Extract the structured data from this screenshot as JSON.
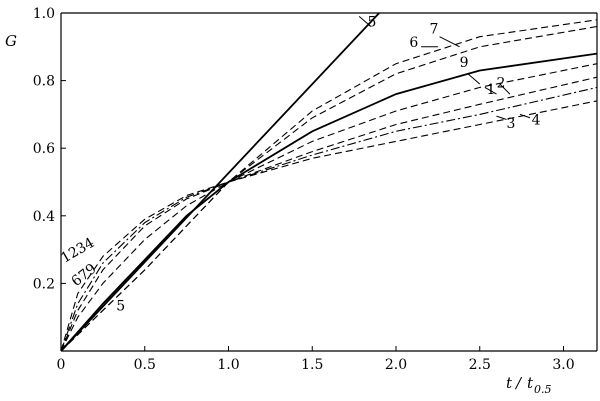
{
  "chart_data": {
    "type": "line",
    "title": "",
    "xlabel_main": "t",
    "xlabel_sep": "/",
    "xlabel_var": "t",
    "xlabel_sub": "0.5",
    "ylabel": "G",
    "xlim": [
      0,
      3.2
    ],
    "ylim": [
      0,
      1.0
    ],
    "x_ticks": [
      0,
      0.5,
      1.0,
      1.5,
      2.0,
      2.5,
      3.0
    ],
    "x_tick_labels": [
      "0",
      "0.5",
      "1.0",
      "1.5",
      "2.0",
      "2.5",
      "3.0"
    ],
    "y_ticks": [
      0.2,
      0.4,
      0.6,
      0.8,
      1.0
    ],
    "y_tick_labels": [
      "0.2",
      "0.4",
      "0.6",
      "0.8",
      "1.0"
    ],
    "grid": false,
    "series": [
      {
        "name": "1",
        "style": "dashed",
        "x": [
          0,
          0.1,
          0.25,
          0.5,
          0.75,
          1.0,
          1.5,
          2.0,
          2.5,
          3.2
        ],
        "y": [
          0,
          0.1,
          0.2,
          0.33,
          0.43,
          0.5,
          0.62,
          0.71,
          0.78,
          0.85
        ]
      },
      {
        "name": "2",
        "style": "dashed",
        "x": [
          0,
          0.1,
          0.25,
          0.5,
          0.75,
          1.0,
          1.5,
          2.0,
          2.5,
          3.2
        ],
        "y": [
          0,
          0.12,
          0.24,
          0.37,
          0.45,
          0.5,
          0.59,
          0.67,
          0.73,
          0.81
        ]
      },
      {
        "name": "3",
        "style": "dashed",
        "x": [
          0,
          0.1,
          0.25,
          0.5,
          0.75,
          1.0,
          1.5,
          2.0,
          2.5,
          3.2
        ],
        "y": [
          0,
          0.17,
          0.28,
          0.39,
          0.46,
          0.5,
          0.57,
          0.62,
          0.67,
          0.74
        ]
      },
      {
        "name": "4",
        "style": "dashdot",
        "x": [
          0,
          0.1,
          0.25,
          0.5,
          0.75,
          1.0,
          1.5,
          2.0,
          2.5,
          3.2
        ],
        "y": [
          0,
          0.14,
          0.26,
          0.38,
          0.455,
          0.5,
          0.58,
          0.65,
          0.7,
          0.78
        ]
      },
      {
        "name": "5",
        "style": "solid",
        "x": [
          0,
          1.9
        ],
        "y": [
          0,
          1.0
        ]
      },
      {
        "name": "6",
        "style": "dashed",
        "x": [
          0,
          0.25,
          0.5,
          0.75,
          1.0,
          1.5,
          2.0,
          2.5,
          3.2
        ],
        "y": [
          0,
          0.12,
          0.24,
          0.37,
          0.5,
          0.69,
          0.82,
          0.9,
          0.96
        ]
      },
      {
        "name": "7",
        "style": "dashed",
        "x": [
          0,
          0.25,
          0.5,
          0.75,
          1.0,
          1.5,
          2.0,
          2.5,
          3.2
        ],
        "y": [
          0,
          0.12,
          0.24,
          0.37,
          0.5,
          0.71,
          0.85,
          0.93,
          0.98
        ]
      },
      {
        "name": "9",
        "style": "solid",
        "x": [
          0,
          0.25,
          0.5,
          0.75,
          1.0,
          1.5,
          2.0,
          2.5,
          3.2
        ],
        "y": [
          0,
          0.14,
          0.27,
          0.4,
          0.5,
          0.65,
          0.76,
          0.83,
          0.88
        ]
      }
    ],
    "annotations": [
      {
        "text": "1234",
        "x": 0.02,
        "y": 0.26
      },
      {
        "text": "679",
        "x": 0.09,
        "y": 0.19
      },
      {
        "text": "5",
        "x": 0.33,
        "y": 0.12
      },
      {
        "text": "5",
        "x": 1.83,
        "y": 0.96
      },
      {
        "text": "6",
        "x": 2.08,
        "y": 0.9
      },
      {
        "text": "7",
        "x": 2.2,
        "y": 0.94
      },
      {
        "text": "9",
        "x": 2.38,
        "y": 0.84
      },
      {
        "text": "1",
        "x": 2.54,
        "y": 0.76
      },
      {
        "text": "2",
        "x": 2.6,
        "y": 0.78
      },
      {
        "text": "3",
        "x": 2.66,
        "y": 0.66
      },
      {
        "text": "4",
        "x": 2.81,
        "y": 0.67
      }
    ]
  }
}
